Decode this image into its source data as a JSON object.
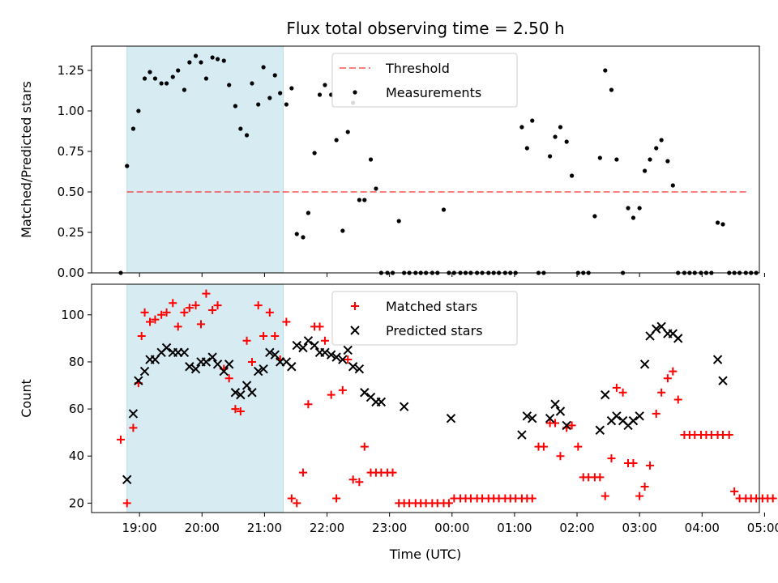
{
  "chart_data": {
    "type": "scatter",
    "title": "Flux total observing time = 2.50 h",
    "xlabel": "Time (UTC)",
    "x_ticks": [
      "19:00",
      "20:00",
      "21:00",
      "22:00",
      "23:00",
      "00:00",
      "01:00",
      "02:00",
      "03:00",
      "04:00",
      "05:00"
    ],
    "x_range": [
      "18:14",
      "04:55"
    ],
    "shaded_span": [
      "18:48",
      "21:18"
    ],
    "colors": {
      "shade": "#add8e6",
      "threshold": "#ff0000",
      "measurements": "#000000",
      "matched": "#ff0000",
      "predicted": "#000000"
    },
    "panels": [
      {
        "ylabel": "Matched/Predicted stars",
        "ylim": [
          0,
          1.4
        ],
        "y_ticks": [
          "0.00",
          "0.25",
          "0.50",
          "0.75",
          "1.00",
          "1.25"
        ],
        "threshold": {
          "name": "Threshold",
          "value": 0.5,
          "x": [
            "18:48",
            "04:43"
          ]
        },
        "legend": [
          "Threshold",
          "Measurements"
        ],
        "legend_position": "upper center",
        "series": [
          {
            "name": "Measurements",
            "x": [
              "18:42",
              "18:48",
              "18:54",
              "18:59",
              "19:05",
              "19:10",
              "19:15",
              "19:21",
              "19:26",
              "19:32",
              "19:37",
              "19:43",
              "19:48",
              "19:54",
              "19:59",
              "20:04",
              "20:10",
              "20:15",
              "20:21",
              "20:26",
              "20:32",
              "20:37",
              "20:43",
              "20:48",
              "20:54",
              "20:59",
              "21:05",
              "21:10",
              "21:15",
              "21:21",
              "21:26",
              "21:31",
              "21:37",
              "21:42",
              "21:48",
              "21:53",
              "21:58",
              "22:04",
              "22:09",
              "22:15",
              "22:20",
              "22:25",
              "22:31",
              "22:36",
              "22:42",
              "22:47",
              "22:52",
              "22:58",
              "23:03",
              "23:09",
              "23:14",
              "23:19",
              "23:25",
              "23:30",
              "23:35",
              "23:41",
              "23:46",
              "23:52",
              "23:57",
              "00:02",
              "00:08",
              "00:13",
              "00:18",
              "00:24",
              "00:29",
              "00:35",
              "00:40",
              "00:45",
              "00:51",
              "00:56",
              "01:01",
              "01:07",
              "01:12",
              "01:17",
              "01:23",
              "01:28",
              "01:34",
              "01:39",
              "01:44",
              "01:50",
              "01:55",
              "02:01",
              "02:06",
              "02:11",
              "02:17",
              "02:22",
              "02:27",
              "02:33",
              "02:38",
              "02:44",
              "02:49",
              "02:54",
              "03:00",
              "03:05",
              "03:10",
              "03:16",
              "03:21",
              "03:27",
              "03:32",
              "03:37",
              "03:43",
              "03:48",
              "03:53",
              "03:59",
              "04:04",
              "04:09",
              "04:15",
              "04:20",
              "04:26",
              "04:31",
              "04:36",
              "04:42",
              "04:47",
              "04:52"
            ],
            "y": [
              0.0,
              0.66,
              0.89,
              1.0,
              1.2,
              1.24,
              1.2,
              1.17,
              1.17,
              1.21,
              1.25,
              1.13,
              1.3,
              1.34,
              1.3,
              1.2,
              1.33,
              1.32,
              1.31,
              1.16,
              1.03,
              0.89,
              0.85,
              1.17,
              1.04,
              1.27,
              1.08,
              1.22,
              1.11,
              1.04,
              1.14,
              0.24,
              0.22,
              0.37,
              0.74,
              1.1,
              1.16,
              1.1,
              0.82,
              0.26,
              0.87,
              1.05,
              0.45,
              0.45,
              0.7,
              0.52,
              0.0,
              0.0,
              0.0,
              0.32,
              0.0,
              0.0,
              0.0,
              0.0,
              0.0,
              0.0,
              0.0,
              0.39,
              0.0,
              0.0,
              0.0,
              0.0,
              0.0,
              0.0,
              0.0,
              0.0,
              0.0,
              0.0,
              0.0,
              0.0,
              0.0,
              0.9,
              0.77,
              0.94,
              0.0,
              0.0,
              0.72,
              0.84,
              0.9,
              0.81,
              0.6,
              0.0,
              0.0,
              0.0,
              0.35,
              0.71,
              1.25,
              1.13,
              0.7,
              0.0,
              0.4,
              0.34,
              0.4,
              0.63,
              0.7,
              0.77,
              0.82,
              0.69,
              0.54,
              0.0,
              0.0,
              0.0,
              0.0,
              0.0,
              0.0,
              0.0,
              0.31,
              0.3,
              0.0,
              0.0,
              0.0,
              0.0,
              0.0,
              0.0
            ]
          }
        ]
      },
      {
        "ylabel": "Count",
        "ylim": [
          16,
          113
        ],
        "y_ticks": [
          "20",
          "40",
          "60",
          "80",
          "100"
        ],
        "legend": [
          "Matched stars",
          "Predicted stars"
        ],
        "legend_position": "upper center",
        "series": [
          {
            "name": "Matched stars",
            "marker": "+",
            "x": [
              "18:42",
              "18:48",
              "18:54",
              "18:59",
              "19:02",
              "19:05",
              "19:10",
              "19:15",
              "19:21",
              "19:26",
              "19:32",
              "19:37",
              "19:43",
              "19:48",
              "19:54",
              "19:59",
              "20:04",
              "20:10",
              "20:15",
              "20:21",
              "20:26",
              "20:32",
              "20:37",
              "20:43",
              "20:48",
              "20:54",
              "20:59",
              "21:05",
              "21:10",
              "21:15",
              "21:21",
              "21:26",
              "21:31",
              "21:37",
              "21:42",
              "21:48",
              "21:53",
              "21:58",
              "22:04",
              "22:09",
              "22:15",
              "22:20",
              "22:25",
              "22:31",
              "22:36",
              "22:42",
              "22:47",
              "22:52",
              "22:58",
              "23:03",
              "23:09",
              "23:14",
              "23:19",
              "23:25",
              "23:30",
              "23:35",
              "23:41",
              "23:46",
              "23:52",
              "23:57",
              "00:02",
              "00:08",
              "00:13",
              "00:18",
              "00:24",
              "00:29",
              "00:35",
              "00:40",
              "00:45",
              "00:51",
              "00:56",
              "01:01",
              "01:07",
              "01:12",
              "01:17",
              "01:23",
              "01:28",
              "01:34",
              "01:39",
              "01:44",
              "01:50",
              "01:55",
              "02:01",
              "02:06",
              "02:11",
              "02:17",
              "02:22",
              "02:27",
              "02:33",
              "02:38",
              "02:44",
              "02:49",
              "02:54",
              "03:00",
              "03:05",
              "03:10",
              "03:16",
              "03:21",
              "03:27",
              "03:32",
              "03:37",
              "03:43",
              "03:48",
              "03:53",
              "03:59",
              "04:04",
              "04:09",
              "04:15",
              "04:20",
              "04:26",
              "04:31",
              "04:36",
              "04:42",
              "04:47",
              "04:52",
              "04:58",
              "05:03",
              "05:08"
            ],
            "y": [
              47,
              20,
              52,
              71,
              91,
              101,
              97,
              98,
              100,
              101,
              105,
              95,
              101,
              103,
              104,
              96,
              109,
              102,
              104,
              77,
              73,
              60,
              59,
              89,
              80,
              104,
              91,
              101,
              91,
              81,
              97,
              22,
              20,
              33,
              62,
              95,
              95,
              89,
              66,
              22,
              68,
              81,
              30,
              29,
              44,
              33,
              33,
              33,
              33,
              33,
              20,
              20,
              20,
              20,
              20,
              20,
              20,
              20,
              20,
              20,
              22,
              22,
              22,
              22,
              22,
              22,
              22,
              22,
              22,
              22,
              22,
              22,
              22,
              22,
              22,
              44,
              44,
              54,
              54,
              40,
              52,
              53,
              44,
              31,
              31,
              31,
              31,
              23,
              39,
              69,
              67,
              37,
              37,
              23,
              27,
              36,
              58,
              67,
              73,
              76,
              64,
              49,
              49,
              49,
              49,
              49,
              49,
              49,
              49,
              49,
              25,
              22,
              22,
              22,
              22,
              22,
              22,
              22
            ]
          },
          {
            "name": "Predicted stars",
            "marker": "x",
            "x": [
              "18:48",
              "18:54",
              "18:59",
              "19:05",
              "19:10",
              "19:15",
              "19:21",
              "19:26",
              "19:32",
              "19:37",
              "19:43",
              "19:48",
              "19:54",
              "19:59",
              "20:04",
              "20:10",
              "20:15",
              "20:21",
              "20:26",
              "20:32",
              "20:37",
              "20:43",
              "20:48",
              "20:54",
              "20:59",
              "21:05",
              "21:10",
              "21:15",
              "21:21",
              "21:26",
              "21:31",
              "21:37",
              "21:42",
              "21:48",
              "21:53",
              "21:58",
              "22:04",
              "22:09",
              "22:15",
              "22:20",
              "22:25",
              "22:31",
              "22:36",
              "22:42",
              "22:47",
              "22:52",
              "23:14",
              "23:59",
              "01:07",
              "01:12",
              "01:17",
              "01:34",
              "01:39",
              "01:44",
              "01:50",
              "02:22",
              "02:27",
              "02:33",
              "02:38",
              "02:44",
              "02:49",
              "02:54",
              "03:00",
              "03:05",
              "03:10",
              "03:16",
              "03:21",
              "03:27",
              "03:32",
              "03:37",
              "04:15",
              "04:20"
            ],
            "y": [
              30,
              58,
              72,
              76,
              81,
              81,
              84,
              86,
              84,
              84,
              84,
              78,
              77,
              80,
              80,
              82,
              79,
              76,
              79,
              67,
              66,
              70,
              67,
              76,
              77,
              84,
              83,
              80,
              80,
              78,
              87,
              86,
              89,
              87,
              84,
              84,
              83,
              82,
              81,
              85,
              78,
              77,
              67,
              65,
              63,
              63,
              61,
              56,
              49,
              57,
              56,
              56,
              62,
              59,
              53,
              51,
              66,
              55,
              57,
              55,
              53,
              55,
              57,
              79,
              91,
              94,
              95,
              92,
              92,
              90,
              81,
              72
            ]
          }
        ]
      }
    ]
  }
}
